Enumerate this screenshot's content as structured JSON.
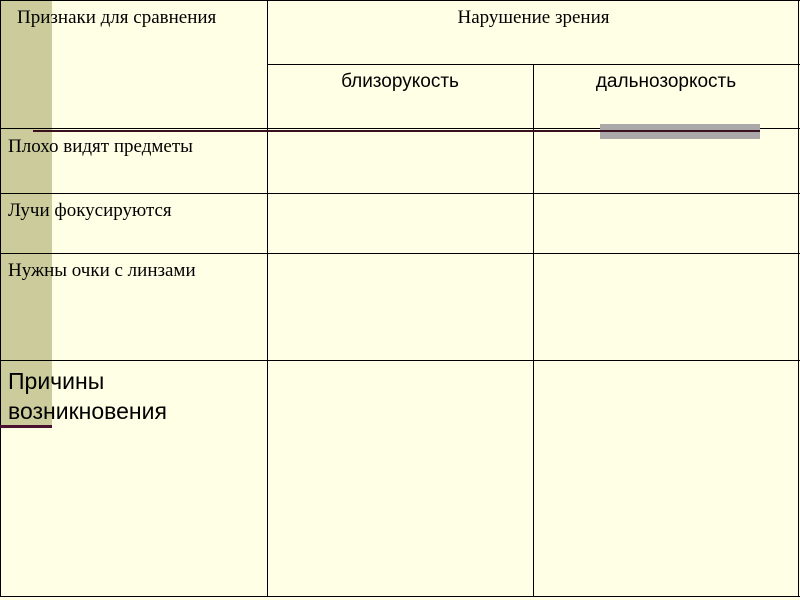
{
  "table": {
    "header_col1": "Признаки для сравнения",
    "header_group": "Нарушение зрения",
    "subheaders": [
      "близорукость",
      "дальнозоркость"
    ],
    "rows": [
      {
        "label": "Плохо видят предметы",
        "cells": [
          "",
          ""
        ]
      },
      {
        "label": "Лучи фокусируются",
        "cells": [
          "",
          ""
        ]
      },
      {
        "label": "Нужны очки с линзами",
        "cells": [
          "",
          ""
        ]
      },
      {
        "label": "Причины возникновения",
        "cells": [
          "",
          ""
        ]
      }
    ]
  },
  "colors": {
    "background": "#FFFFE5",
    "stripe": "#CBCB9B",
    "accent_line": "#3A1020",
    "accent_bar": "#ABA8AA"
  }
}
